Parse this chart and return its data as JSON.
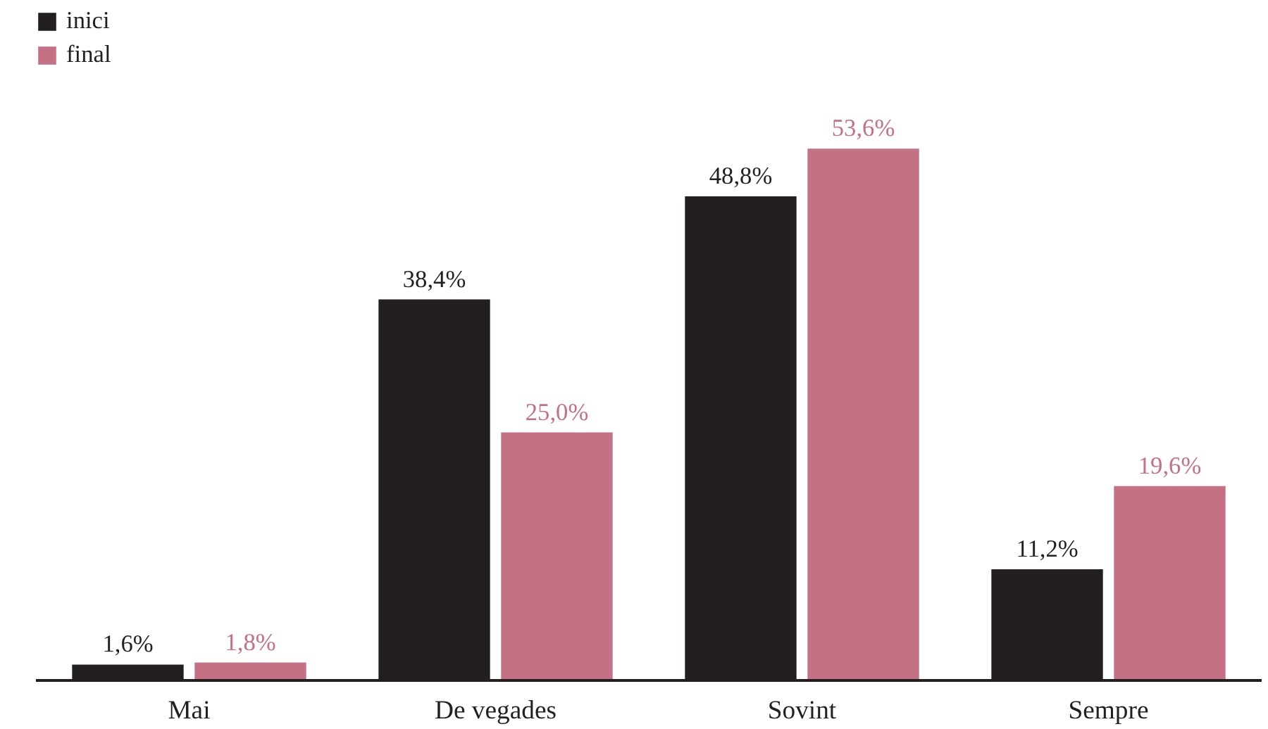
{
  "chart_data": {
    "type": "bar",
    "categories": [
      "Mai",
      "De vegades",
      "Sovint",
      "Sempre"
    ],
    "series": [
      {
        "name": "inici",
        "color": "#231f20",
        "values": [
          1.6,
          38.4,
          48.8,
          11.2
        ],
        "value_labels": [
          "1,6%",
          "38,4%",
          "48,8%",
          "11,2%"
        ]
      },
      {
        "name": "final",
        "color": "#c47085",
        "values": [
          1.8,
          25.0,
          53.6,
          19.6
        ],
        "value_labels": [
          "1,8%",
          "25,0%",
          "53,6%",
          "19,6%"
        ]
      }
    ],
    "legend": "top left"
  }
}
